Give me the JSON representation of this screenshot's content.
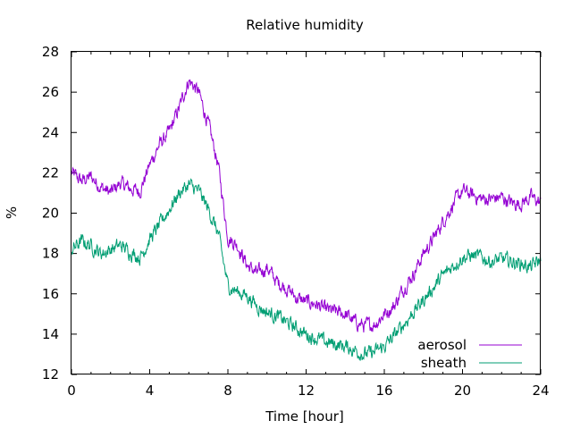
{
  "chart_data": {
    "type": "line",
    "title": "Relative humidity",
    "xlabel": "Time [hour]",
    "ylabel": "%",
    "xlim": [
      0,
      24
    ],
    "ylim": [
      12,
      28
    ],
    "xticks": [
      0,
      4,
      8,
      12,
      16,
      20,
      24
    ],
    "yticks": [
      12,
      14,
      16,
      18,
      20,
      22,
      24,
      26,
      28
    ],
    "grid": false,
    "legend_position": "bottom-right",
    "series": [
      {
        "name": "aerosol",
        "color": "#9400d3",
        "x": [
          0,
          0.5,
          1,
          1.5,
          2,
          2.5,
          3,
          3.5,
          4,
          4.5,
          5,
          5.5,
          6,
          6.5,
          7,
          7.5,
          8,
          8.5,
          9,
          9.5,
          10,
          10.5,
          11,
          11.5,
          12,
          12.5,
          13,
          13.5,
          14,
          14.5,
          15,
          15.5,
          16,
          16.5,
          17,
          17.5,
          18,
          18.5,
          19,
          19.5,
          20,
          20.5,
          21,
          21.5,
          22,
          22.5,
          23,
          23.5,
          24
        ],
        "y": [
          22.0,
          21.6,
          21.8,
          21.3,
          21.0,
          21.5,
          21.2,
          21.1,
          22.4,
          23.4,
          24.0,
          25.2,
          26.6,
          26.0,
          24.4,
          22.4,
          18.8,
          18.4,
          17.4,
          17.0,
          17.3,
          16.6,
          16.3,
          15.8,
          15.6,
          15.5,
          15.2,
          15.1,
          15.0,
          14.6,
          14.4,
          14.5,
          15.0,
          15.4,
          16.3,
          17.0,
          18.0,
          18.7,
          19.6,
          20.4,
          21.1,
          20.9,
          20.7,
          20.7,
          20.8,
          20.5,
          20.5,
          20.8,
          20.5
        ]
      },
      {
        "name": "sheath",
        "color": "#009e73",
        "x": [
          0,
          0.5,
          1,
          1.5,
          2,
          2.5,
          3,
          3.5,
          4,
          4.5,
          5,
          5.5,
          6,
          6.5,
          7,
          7.5,
          8,
          8.5,
          9,
          9.5,
          10,
          10.5,
          11,
          11.5,
          12,
          12.5,
          13,
          13.5,
          14,
          14.5,
          15,
          15.5,
          16,
          16.5,
          17,
          17.5,
          18,
          18.5,
          19,
          19.5,
          20,
          20.5,
          21,
          21.5,
          22,
          22.5,
          23,
          23.5,
          24
        ],
        "y": [
          18.2,
          18.6,
          18.4,
          18.0,
          18.2,
          18.4,
          18.1,
          17.8,
          18.7,
          19.4,
          20.2,
          21.0,
          21.4,
          21.1,
          20.2,
          19.0,
          16.4,
          16.1,
          15.9,
          15.4,
          15.1,
          14.9,
          14.6,
          14.3,
          14.0,
          13.8,
          13.6,
          13.5,
          13.4,
          13.2,
          13.0,
          13.1,
          13.4,
          13.9,
          14.5,
          15.1,
          15.7,
          16.3,
          16.9,
          17.4,
          17.8,
          17.9,
          17.8,
          17.6,
          17.7,
          17.6,
          17.5,
          17.3,
          17.7
        ]
      }
    ]
  }
}
